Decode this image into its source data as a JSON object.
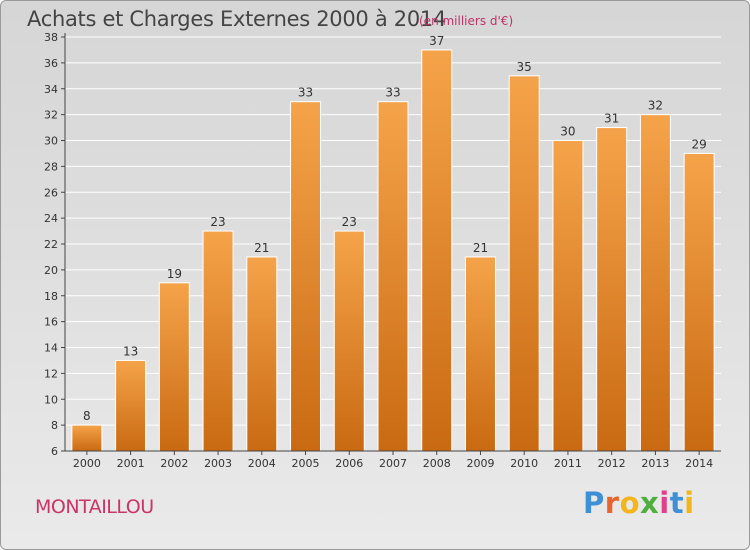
{
  "title": "Achats et Charges Externes 2000 à 2014",
  "subtitle": "(en milliers d'€)",
  "commune": "MONTAILLOU",
  "brand": {
    "letters": [
      "P",
      "r",
      "o",
      "x",
      "i",
      "t",
      "i"
    ],
    "colors": [
      "#3d8fd6",
      "#e6662e",
      "#f2b51c",
      "#4fae3d",
      "#e0408a",
      "#3d8fd6",
      "#f2b51c"
    ]
  },
  "colors": {
    "bar_top": "#f5a34a",
    "bar_bottom": "#c96a12",
    "bar_stroke": "#ffffff",
    "axis": "#444444",
    "grid": "#ffffff",
    "label": "#333333"
  },
  "chart_data": {
    "type": "bar",
    "categories": [
      "2000",
      "2001",
      "2002",
      "2003",
      "2004",
      "2005",
      "2006",
      "2007",
      "2008",
      "2009",
      "2010",
      "2011",
      "2012",
      "2013",
      "2014"
    ],
    "values": [
      8,
      13,
      19,
      23,
      21,
      33,
      23,
      33,
      37,
      21,
      35,
      30,
      31,
      32,
      29
    ],
    "data_labels": [
      "8",
      "13",
      "19",
      "23",
      "21",
      "33",
      "23",
      "33",
      "37",
      "21",
      "35",
      "30",
      "31",
      "32",
      "29"
    ],
    "yticks": [
      "6",
      "8",
      "10",
      "12",
      "14",
      "16",
      "18",
      "20",
      "22",
      "24",
      "26",
      "28",
      "30",
      "32",
      "34",
      "36",
      "38"
    ],
    "ylim": [
      6,
      38
    ],
    "grid": true,
    "xlabel": "",
    "ylabel": ""
  }
}
